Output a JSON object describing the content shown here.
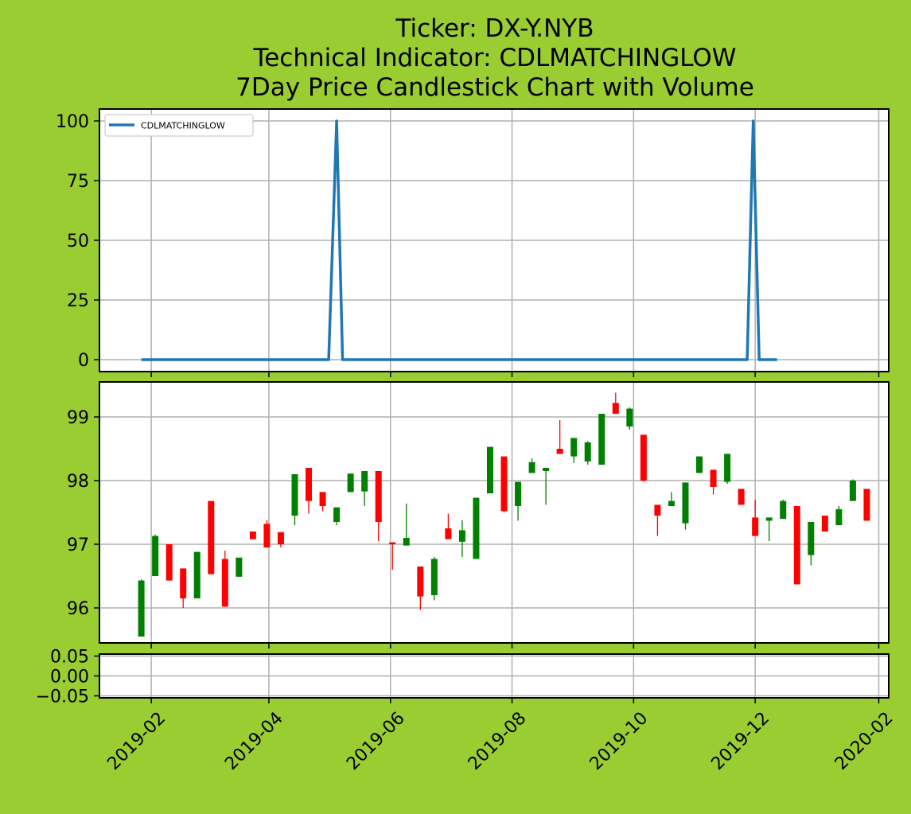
{
  "figure": {
    "background": "#9acd32",
    "title_lines": [
      "Ticker: DX-Y.NYB",
      "Technical Indicator: CDLMATCHINGLOW",
      "7Day Price Candlestick Chart with Volume"
    ]
  },
  "chart_data": [
    {
      "type": "line",
      "panel": "indicator",
      "legend": {
        "label": "CDLMATCHINGLOW",
        "placement": "upper-left"
      },
      "color": "#1f77b4",
      "x_range": [
        "2019-01-06",
        "2020-02-06"
      ],
      "y_range": [
        -5,
        105
      ],
      "y_ticks": [
        "0",
        "25",
        "50",
        "75",
        "100"
      ],
      "grid": true,
      "series": [
        {
          "name": "CDLMATCHINGLOW",
          "points": [
            [
              "2019-01-27",
              0
            ],
            [
              "2019-05-01",
              0
            ],
            [
              "2019-05-05",
              100
            ],
            [
              "2019-05-08",
              0
            ],
            [
              "2019-11-27",
              0
            ],
            [
              "2019-11-30",
              100
            ],
            [
              "2019-12-03",
              0
            ],
            [
              "2019-12-12",
              0
            ]
          ]
        }
      ]
    },
    {
      "type": "candlestick",
      "panel": "price",
      "up_color": "#008000",
      "down_color": "#ff0000",
      "x_range": [
        "2019-01-06",
        "2020-02-06"
      ],
      "y_range": [
        95.45,
        99.55
      ],
      "y_ticks": [
        "96",
        "97",
        "98",
        "99"
      ],
      "grid": true,
      "candles": [
        {
          "date": "2019-01-27",
          "open": 95.55,
          "high": 96.45,
          "low": 95.55,
          "close": 96.43
        },
        {
          "date": "2019-02-03",
          "open": 96.5,
          "high": 97.15,
          "low": 96.5,
          "close": 97.13
        },
        {
          "date": "2019-02-10",
          "open": 97.0,
          "high": 97.0,
          "low": 96.43,
          "close": 96.43
        },
        {
          "date": "2019-02-17",
          "open": 96.62,
          "high": 96.62,
          "low": 96.0,
          "close": 96.15
        },
        {
          "date": "2019-02-24",
          "open": 96.15,
          "high": 96.88,
          "low": 96.15,
          "close": 96.88
        },
        {
          "date": "2019-03-03",
          "open": 97.68,
          "high": 97.68,
          "low": 96.53,
          "close": 96.53
        },
        {
          "date": "2019-03-10",
          "open": 96.77,
          "high": 96.9,
          "low": 96.02,
          "close": 96.02
        },
        {
          "date": "2019-03-17",
          "open": 96.49,
          "high": 96.79,
          "low": 96.49,
          "close": 96.79
        },
        {
          "date": "2019-03-24",
          "open": 97.2,
          "high": 97.2,
          "low": 97.08,
          "close": 97.08
        },
        {
          "date": "2019-03-31",
          "open": 97.32,
          "high": 97.38,
          "low": 96.95,
          "close": 96.95
        },
        {
          "date": "2019-04-07",
          "open": 97.19,
          "high": 97.19,
          "low": 96.95,
          "close": 97.0
        },
        {
          "date": "2019-04-14",
          "open": 97.45,
          "high": 98.1,
          "low": 97.3,
          "close": 98.1
        },
        {
          "date": "2019-04-21",
          "open": 98.2,
          "high": 98.2,
          "low": 97.48,
          "close": 97.68
        },
        {
          "date": "2019-04-28",
          "open": 97.82,
          "high": 97.82,
          "low": 97.52,
          "close": 97.6
        },
        {
          "date": "2019-05-05",
          "open": 97.35,
          "high": 97.58,
          "low": 97.3,
          "close": 97.58
        },
        {
          "date": "2019-05-12",
          "open": 97.82,
          "high": 98.11,
          "low": 97.82,
          "close": 98.11
        },
        {
          "date": "2019-05-19",
          "open": 97.83,
          "high": 98.15,
          "low": 97.6,
          "close": 98.15
        },
        {
          "date": "2019-05-26",
          "open": 98.15,
          "high": 98.15,
          "low": 97.05,
          "close": 97.35
        },
        {
          "date": "2019-06-02",
          "open": 97.03,
          "high": 97.03,
          "low": 96.6,
          "close": 97.0
        },
        {
          "date": "2019-06-09",
          "open": 96.98,
          "high": 97.64,
          "low": 96.98,
          "close": 97.1
        },
        {
          "date": "2019-06-16",
          "open": 96.65,
          "high": 96.65,
          "low": 95.97,
          "close": 96.18
        },
        {
          "date": "2019-06-23",
          "open": 96.2,
          "high": 96.8,
          "low": 96.12,
          "close": 96.77
        },
        {
          "date": "2019-06-30",
          "open": 97.25,
          "high": 97.48,
          "low": 97.08,
          "close": 97.08
        },
        {
          "date": "2019-07-07",
          "open": 97.04,
          "high": 97.38,
          "low": 96.8,
          "close": 97.22
        },
        {
          "date": "2019-07-14",
          "open": 96.77,
          "high": 97.73,
          "low": 96.77,
          "close": 97.73
        },
        {
          "date": "2019-07-21",
          "open": 97.8,
          "high": 98.53,
          "low": 97.8,
          "close": 98.53
        },
        {
          "date": "2019-07-28",
          "open": 98.38,
          "high": 98.38,
          "low": 97.5,
          "close": 97.52
        },
        {
          "date": "2019-08-04",
          "open": 97.6,
          "high": 97.98,
          "low": 97.37,
          "close": 97.98
        },
        {
          "date": "2019-08-11",
          "open": 98.12,
          "high": 98.35,
          "low": 98.12,
          "close": 98.29
        },
        {
          "date": "2019-08-18",
          "open": 98.15,
          "high": 98.2,
          "low": 97.62,
          "close": 98.2
        },
        {
          "date": "2019-08-25",
          "open": 98.5,
          "high": 98.95,
          "low": 98.42,
          "close": 98.42
        },
        {
          "date": "2019-09-01",
          "open": 98.38,
          "high": 98.67,
          "low": 98.28,
          "close": 98.67
        },
        {
          "date": "2019-09-08",
          "open": 98.3,
          "high": 98.62,
          "low": 98.25,
          "close": 98.6
        },
        {
          "date": "2019-09-15",
          "open": 98.25,
          "high": 99.05,
          "low": 98.25,
          "close": 99.05
        },
        {
          "date": "2019-09-22",
          "open": 99.22,
          "high": 99.38,
          "low": 99.05,
          "close": 99.05
        },
        {
          "date": "2019-09-29",
          "open": 98.85,
          "high": 99.15,
          "low": 98.8,
          "close": 99.13
        },
        {
          "date": "2019-10-06",
          "open": 98.72,
          "high": 98.72,
          "low": 97.98,
          "close": 98.0
        },
        {
          "date": "2019-10-13",
          "open": 97.62,
          "high": 97.62,
          "low": 97.13,
          "close": 97.45
        },
        {
          "date": "2019-10-20",
          "open": 97.6,
          "high": 97.82,
          "low": 97.6,
          "close": 97.68
        },
        {
          "date": "2019-10-27",
          "open": 97.33,
          "high": 97.97,
          "low": 97.23,
          "close": 97.97
        },
        {
          "date": "2019-11-03",
          "open": 98.12,
          "high": 98.38,
          "low": 98.12,
          "close": 98.38
        },
        {
          "date": "2019-11-10",
          "open": 98.17,
          "high": 98.17,
          "low": 97.78,
          "close": 97.9
        },
        {
          "date": "2019-11-17",
          "open": 97.98,
          "high": 98.42,
          "low": 97.95,
          "close": 98.42
        },
        {
          "date": "2019-11-24",
          "open": 97.87,
          "high": 97.87,
          "low": 97.62,
          "close": 97.62
        },
        {
          "date": "2019-12-01",
          "open": 97.42,
          "high": 97.7,
          "low": 97.13,
          "close": 97.13
        },
        {
          "date": "2019-12-08",
          "open": 97.37,
          "high": 97.42,
          "low": 97.05,
          "close": 97.42
        },
        {
          "date": "2019-12-15",
          "open": 97.4,
          "high": 97.7,
          "low": 97.4,
          "close": 97.68
        },
        {
          "date": "2019-12-22",
          "open": 97.6,
          "high": 97.6,
          "low": 96.37,
          "close": 96.37
        },
        {
          "date": "2019-12-29",
          "open": 96.83,
          "high": 97.35,
          "low": 96.67,
          "close": 97.35
        },
        {
          "date": "2020-01-05",
          "open": 97.45,
          "high": 97.45,
          "low": 97.2,
          "close": 97.2
        },
        {
          "date": "2020-01-12",
          "open": 97.3,
          "high": 97.6,
          "low": 97.3,
          "close": 97.55
        },
        {
          "date": "2020-01-19",
          "open": 97.68,
          "high": 98.02,
          "low": 97.68,
          "close": 98.0
        },
        {
          "date": "2020-01-26",
          "open": 97.87,
          "high": 97.87,
          "low": 97.37,
          "close": 97.37
        }
      ]
    },
    {
      "type": "bar",
      "panel": "volume",
      "y_range": [
        -0.055,
        0.055
      ],
      "y_ticks": [
        "0.05",
        "0.00",
        "−0.05"
      ],
      "grid": true,
      "x_range": [
        "2019-01-06",
        "2020-02-06"
      ],
      "x_ticks": [
        "2019-02",
        "2019-04",
        "2019-06",
        "2019-08",
        "2019-10",
        "2019-12",
        "2020-02"
      ],
      "values": []
    }
  ]
}
